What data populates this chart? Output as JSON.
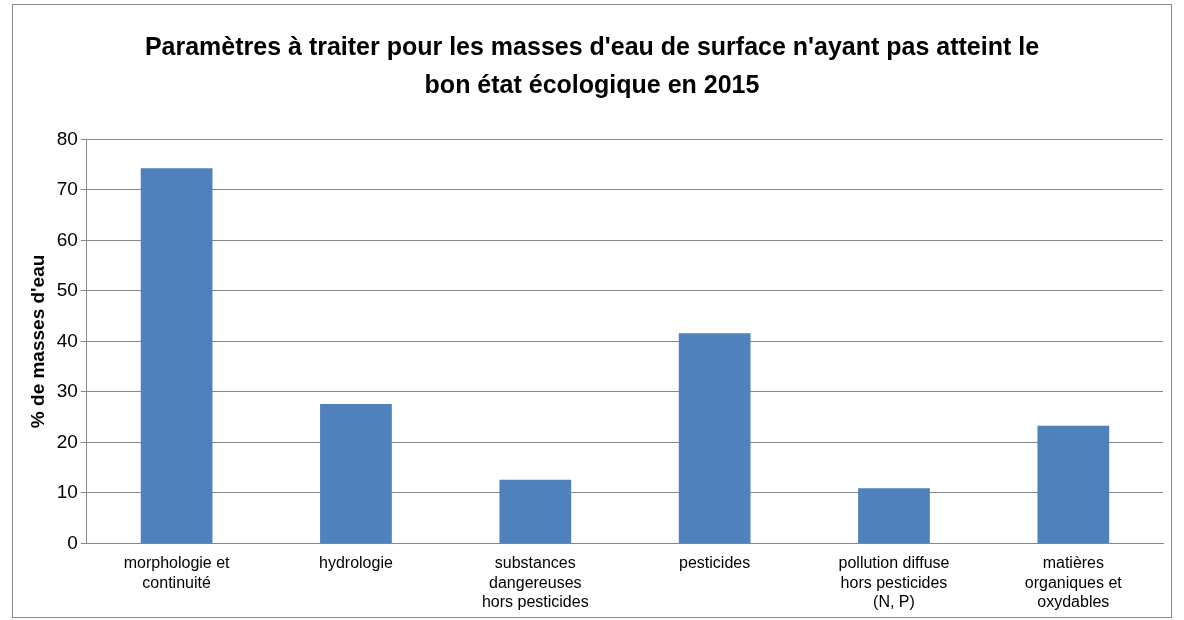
{
  "chart_data": {
    "type": "bar",
    "title": "Paramètres à traiter pour les masses d'eau de surface n'ayant pas atteint le bon état écologique en 2015",
    "ylabel": "% de masses d'eau",
    "categories": [
      "morphologie et continuité",
      "hydrologie",
      "substances dangereuses hors pesticides",
      "pesticides",
      "pollution diffuse hors pesticides (N, P)",
      "matières organiques et oxydables"
    ],
    "values": [
      74.3,
      27.6,
      12.6,
      41.6,
      10.9,
      23.3
    ],
    "color": "#4f81bd",
    "ylim": [
      0,
      80
    ],
    "yticks": [
      0,
      10,
      20,
      30,
      40,
      50,
      60,
      70,
      80
    ],
    "grid": "y",
    "legend": false
  }
}
